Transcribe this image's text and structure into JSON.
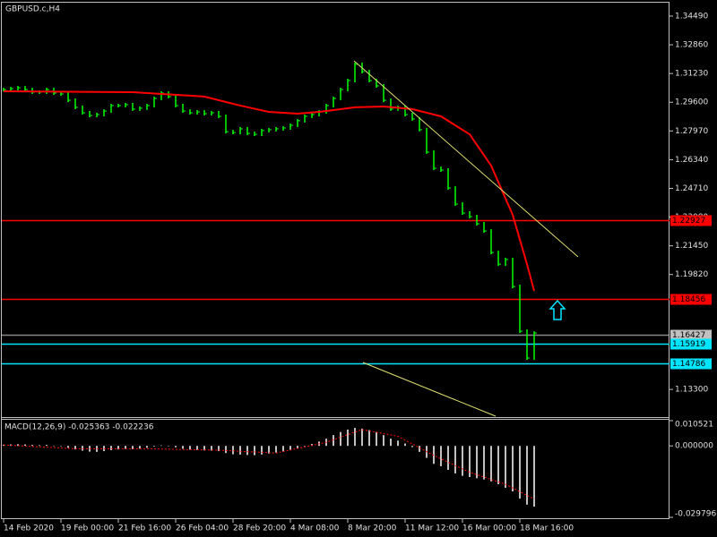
{
  "chart_data": [
    {
      "type": "bar",
      "title": "GBPUSD.c,H4",
      "categories": [
        "14 Feb 2020",
        null,
        null,
        null,
        null,
        null,
        null,
        null,
        "19 Feb 00:00",
        null,
        null,
        null,
        null,
        null,
        null,
        null,
        "21 Feb 16:00",
        null,
        null,
        null,
        null,
        null,
        null,
        null,
        "26 Feb 04:00",
        null,
        null,
        null,
        null,
        null,
        null,
        null,
        "28 Feb 20:00",
        null,
        null,
        null,
        null,
        null,
        null,
        null,
        "4 Mar 08:00",
        null,
        null,
        null,
        null,
        null,
        null,
        null,
        "8 Mar 20:00",
        null,
        null,
        null,
        null,
        null,
        null,
        null,
        "11 Mar 12:00",
        null,
        null,
        null,
        null,
        null,
        null,
        null,
        "16 Mar 00:00",
        null,
        null,
        null,
        null,
        null,
        null,
        null,
        "18 Mar 16:00",
        null,
        null
      ],
      "values": [
        1.3032,
        1.3037,
        1.3042,
        1.3032,
        1.3017,
        1.3017,
        1.3032,
        1.3012,
        1.3007,
        1.2971,
        1.2931,
        1.29,
        1.2885,
        1.289,
        1.291,
        1.2941,
        1.2941,
        1.2946,
        1.2921,
        1.2926,
        1.2941,
        1.2982,
        1.3012,
        1.2992,
        1.2941,
        1.291,
        1.29,
        1.2905,
        1.2895,
        1.29,
        1.288,
        1.2793,
        1.2788,
        1.2809,
        1.2783,
        1.2778,
        1.2799,
        1.2804,
        1.2809,
        1.2814,
        1.2829,
        1.2855,
        1.288,
        1.289,
        1.2905,
        1.2941,
        1.2982,
        1.3032,
        1.3083,
        1.3175,
        1.3134,
        1.3083,
        1.3053,
        1.2971,
        1.2921,
        1.2931,
        1.289,
        1.2865,
        1.2804,
        1.2677,
        1.2585,
        1.2575,
        1.2473,
        1.2382,
        1.2331,
        1.2311,
        1.227,
        1.2229,
        1.2107,
        1.2041,
        1.2067,
        1.1914,
        1.166,
        1.1508,
        1.165
      ],
      "color": "#00ff00",
      "ma_index": [
        0,
        18,
        28,
        33,
        37,
        41,
        44,
        49,
        53,
        57,
        61,
        65,
        68,
        71,
        73,
        74
      ],
      "ma_values": [
        1.3022,
        1.3017,
        1.2992,
        1.2941,
        1.2905,
        1.2895,
        1.2905,
        1.2931,
        1.2936,
        1.2921,
        1.288,
        1.2778,
        1.26,
        1.2321,
        1.2041,
        1.1889
      ],
      "ma_color": "#ff0000",
      "ylim": [
        1.1173,
        1.3525
      ],
      "yticks": [
        {
          "value": 1.3449,
          "label": "1.34490"
        },
        {
          "value": 1.3286,
          "label": "1.32860"
        },
        {
          "value": 1.3123,
          "label": "1.31230"
        },
        {
          "value": 1.296,
          "label": "1.29600"
        },
        {
          "value": 1.2797,
          "label": "1.27970"
        },
        {
          "value": 1.2634,
          "label": "1.26340"
        },
        {
          "value": 1.2471,
          "label": "1.24710"
        },
        {
          "value": 1.2308,
          "label": "1.23080"
        },
        {
          "value": 1.2145,
          "label": "1.21450"
        },
        {
          "value": 1.1982,
          "label": "1.19820"
        },
        {
          "value": 1.133,
          "label": "1.13300"
        }
      ],
      "levels": [
        {
          "value": 1.22927,
          "color": "#ff0000"
        },
        {
          "value": 1.18456,
          "color": "#ff0000"
        },
        {
          "value": 1.16427,
          "color": "#c0c0c0"
        },
        {
          "value": 1.15919,
          "color": "#00e5ff"
        },
        {
          "value": 1.14786,
          "color": "#00e5ff"
        }
      ]
    },
    {
      "type": "macd",
      "title": "MACD(12,26,9) -0.025363 -0.022236",
      "values": [
        0.0005,
        0.0006,
        0.0007,
        0.0006,
        0.0004,
        0.0003,
        0.0004,
        0.0001,
        -0.0002,
        -0.0008,
        -0.0015,
        -0.002,
        -0.0024,
        -0.0025,
        -0.0022,
        -0.0018,
        -0.0015,
        -0.0013,
        -0.0014,
        -0.0012,
        -0.0008,
        -0.0003,
        0.0002,
        0.0001,
        -0.0006,
        -0.0012,
        -0.0016,
        -0.0018,
        -0.0019,
        -0.002,
        -0.0022,
        -0.003,
        -0.0035,
        -0.0036,
        -0.0038,
        -0.0039,
        -0.0036,
        -0.0032,
        -0.0028,
        -0.0024,
        -0.0018,
        -0.001,
        -0.0002,
        0.0008,
        0.0018,
        0.003,
        0.0045,
        0.0058,
        0.0068,
        0.0075,
        0.0072,
        0.0066,
        0.0058,
        0.0045,
        0.003,
        0.0022,
        0.001,
        -0.0005,
        -0.0025,
        -0.005,
        -0.0075,
        -0.0085,
        -0.01,
        -0.0115,
        -0.0125,
        -0.013,
        -0.0135,
        -0.014,
        -0.0148,
        -0.016,
        -0.0175,
        -0.019,
        -0.022,
        -0.0245,
        -0.025363
      ],
      "color": "#c0c0c0",
      "signal_index": [
        0,
        10,
        20,
        30,
        38,
        45,
        50,
        55,
        60,
        65,
        70,
        74
      ],
      "signal_values": [
        0.0004,
        -0.0012,
        -0.0012,
        -0.0018,
        -0.003,
        0.0015,
        0.0068,
        0.004,
        -0.004,
        -0.011,
        -0.016,
        -0.022236
      ],
      "signal_color": "#ff0000",
      "ylim": [
        -0.029796,
        0.010521
      ],
      "yticks": [
        0.010521,
        {
          "value": 0,
          "label": "0.000000"
        },
        -0.029796
      ]
    }
  ]
}
